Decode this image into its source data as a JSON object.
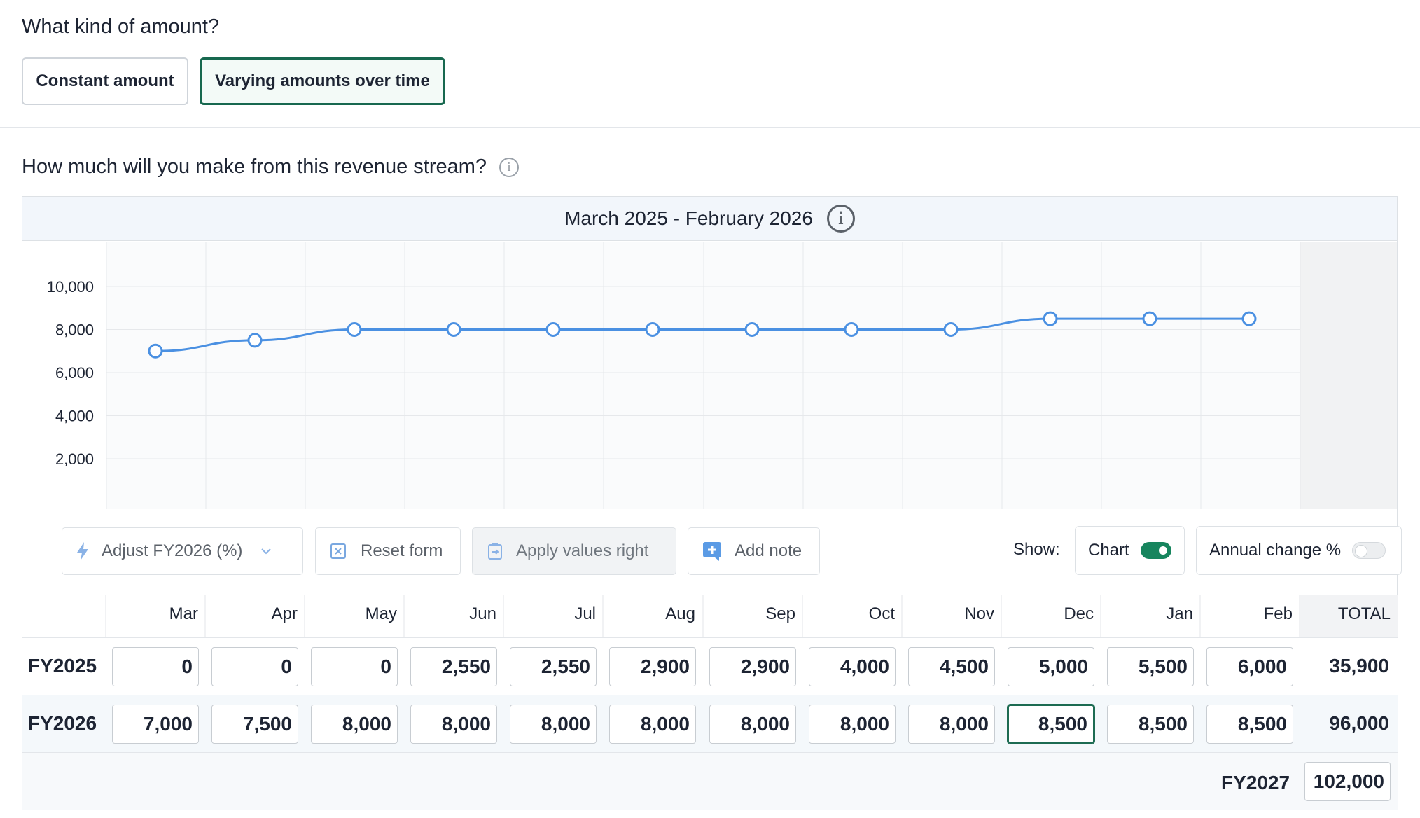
{
  "amount_kind": {
    "title": "What kind of amount?",
    "options": [
      "Constant amount",
      "Varying amounts over time"
    ],
    "selected": "Varying amounts over time"
  },
  "revenue": {
    "title": "How much will you make from this revenue stream?",
    "period": "March 2025 - February 2026"
  },
  "toolbar": {
    "adjust_label": "Adjust FY2026 (%)",
    "reset_label": "Reset form",
    "apply_label": "Apply values right",
    "note_label": "Add note",
    "show_label": "Show:",
    "chart_toggle_label": "Chart",
    "chart_toggle_on": true,
    "annual_toggle_label": "Annual change %",
    "annual_toggle_on": false
  },
  "table": {
    "months": [
      "Mar",
      "Apr",
      "May",
      "Jun",
      "Jul",
      "Aug",
      "Sep",
      "Oct",
      "Nov",
      "Dec",
      "Jan",
      "Feb"
    ],
    "total_header": "TOTAL",
    "rows": [
      {
        "label": "FY2025",
        "values": [
          "0",
          "0",
          "0",
          "2,550",
          "2,550",
          "2,900",
          "2,900",
          "4,000",
          "4,500",
          "5,000",
          "5,500",
          "6,000"
        ],
        "total": "35,900"
      },
      {
        "label": "FY2026",
        "values": [
          "7,000",
          "7,500",
          "8,000",
          "8,000",
          "8,000",
          "8,000",
          "8,000",
          "8,000",
          "8,000",
          "8,500",
          "8,500",
          "8,500"
        ],
        "total": "96,000"
      }
    ],
    "footer_label": "FY2027",
    "footer_value": "102,000"
  },
  "chart_data": {
    "type": "line",
    "categories": [
      "Mar",
      "Apr",
      "May",
      "Jun",
      "Jul",
      "Aug",
      "Sep",
      "Oct",
      "Nov",
      "Dec",
      "Jan",
      "Feb"
    ],
    "series": [
      {
        "values": [
          7000,
          7500,
          8000,
          8000,
          8000,
          8000,
          8000,
          8000,
          8000,
          8500,
          8500,
          8500
        ]
      }
    ],
    "y_ticks": [
      "2,000",
      "4,000",
      "6,000",
      "8,000",
      "10,000"
    ],
    "ylim": [
      0,
      12000
    ],
    "line_color": "#4a90e2",
    "grid": true
  },
  "colors": {
    "accent_green": "#17684f",
    "line_blue": "#4a90e2"
  }
}
